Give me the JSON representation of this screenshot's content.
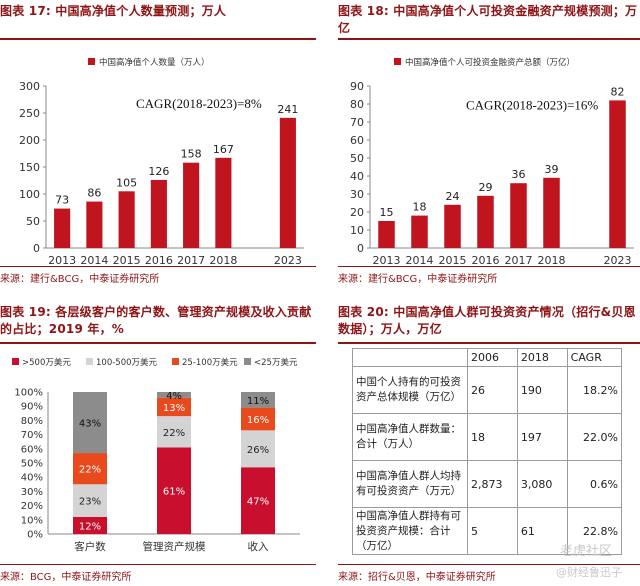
{
  "panels": [
    {
      "title": "图表 17: 中国高净值个人数量预测；万人",
      "source": "来源：建行&BCG，中泰证券研究所",
      "chart_data": {
        "type": "bar",
        "legend": "中国高净值个人数量（万人）",
        "annotation": "CAGR(2018-2023)=8%",
        "categories": [
          "2013",
          "2014",
          "2015",
          "2016",
          "2017",
          "2018",
          "",
          "2023"
        ],
        "values": [
          73,
          86,
          105,
          126,
          158,
          167,
          null,
          241
        ],
        "yticks": [
          0,
          50,
          100,
          150,
          200,
          250,
          300
        ],
        "ylim": [
          0,
          300
        ],
        "color": "#c0151f"
      }
    },
    {
      "title": "图表 18: 中国高净值个人可投资金融资产规模预测；万亿",
      "source": "来源：建行&BCG，中泰证券研究所",
      "chart_data": {
        "type": "bar",
        "legend": "中国高净值个人可投资金融资产总额（万亿）",
        "annotation": "CAGR(2018-2023)=16%",
        "categories": [
          "2013",
          "2014",
          "2015",
          "2016",
          "2017",
          "2018",
          "",
          "2023"
        ],
        "values": [
          15,
          18,
          24,
          29,
          36,
          39,
          null,
          82
        ],
        "yticks": [
          0,
          10,
          20,
          30,
          40,
          50,
          60,
          70,
          80,
          90
        ],
        "ylim": [
          0,
          90
        ],
        "color": "#c0151f"
      }
    },
    {
      "title": "图表 19: 各层级客户的客户数、管理资产规模及收入贡献的占比；2019 年，%",
      "source": "来源：BCG，中泰证券研究所",
      "chart_data": {
        "type": "bar",
        "stacked": true,
        "categories": [
          "客户数",
          "管理资产规模",
          "收入"
        ],
        "series": [
          {
            "name": ">500万美元",
            "color": "#c8102e",
            "values": [
              12,
              61,
              47
            ]
          },
          {
            "name": "100-500万美元",
            "color": "#d4d4d4",
            "values": [
              23,
              22,
              26
            ]
          },
          {
            "name": "25-100万美元",
            "color": "#e8491d",
            "values": [
              22,
              13,
              16
            ]
          },
          {
            "name": "<25万美元",
            "color": "#8c8c8c",
            "values": [
              43,
              4,
              11
            ]
          }
        ],
        "data_labels": [
          [
            "12%",
            "23%",
            "22%",
            "43%"
          ],
          [
            "61%",
            "22%",
            "13%",
            "4%"
          ],
          [
            "47%",
            "26%",
            "16%",
            "11%"
          ]
        ],
        "yticks": [
          "0%",
          "10%",
          "20%",
          "30%",
          "40%",
          "50%",
          "60%",
          "70%",
          "80%",
          "90%",
          "100%"
        ],
        "ylim": [
          0,
          100
        ]
      }
    },
    {
      "title": "图表 20: 中国高净值人群可投资资产情况（招行&贝恩数据）；万人，万亿",
      "source": "来源：招行&贝恩，中泰证券研究所",
      "chart_data": {
        "type": "table",
        "columns": [
          "",
          "2006",
          "2018",
          "CAGR"
        ],
        "rows": [
          [
            "中国个人持有的可投资资产总体规模（万亿）",
            "26",
            "190",
            "18.2%"
          ],
          [
            "中国高净值人群数量：合计（万人）",
            "18",
            "197",
            "22.0%"
          ],
          [
            "中国高净值人群人均持有可投资资产（万元）",
            "2,873",
            "3,080",
            "0.6%"
          ],
          [
            "中国高净值人群持有可投资资产规模：合计（万亿）",
            "5",
            "61",
            "22.8%"
          ]
        ]
      }
    }
  ],
  "watermark": {
    "logo_text": "老虎社区",
    "handle": "@财经鲁迅子"
  }
}
